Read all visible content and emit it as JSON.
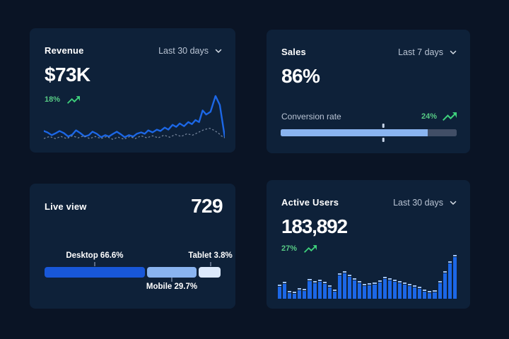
{
  "theme": {
    "page_bg": "#0a1425",
    "card_bg": "#0e2139",
    "muted_text": "#b9c4d4",
    "accent_blue": "#1c67e6",
    "light_blue": "#8ab4f0",
    "pale_blue": "#dce9fb",
    "desktop_blue": "#1857d8",
    "bar_cap": "#9fc2f4",
    "green": "#57ca85",
    "green_icon": "#3ed17c",
    "track_gray": "#414e66",
    "dashed_line": "#76859c"
  },
  "cards": {
    "revenue": {
      "title": "Revenue",
      "range_label": "Last 30 days",
      "value": "$73K",
      "delta": "18%",
      "chart_data": {
        "type": "line",
        "series": [
          {
            "name": "current",
            "style": "solid",
            "points": [
              [
                0,
                54
              ],
              [
                5,
                56
              ],
              [
                11,
                60
              ],
              [
                17,
                57
              ],
              [
                22,
                54
              ],
              [
                28,
                57
              ],
              [
                34,
                62
              ],
              [
                40,
                59
              ],
              [
                45,
                53
              ],
              [
                51,
                57
              ],
              [
                57,
                62
              ],
              [
                63,
                60
              ],
              [
                68,
                55
              ],
              [
                74,
                58
              ],
              [
                80,
                63
              ],
              [
                86,
                60
              ],
              [
                91,
                62
              ],
              [
                97,
                58
              ],
              [
                102,
                55
              ],
              [
                108,
                59
              ],
              [
                113,
                63
              ],
              [
                119,
                60
              ],
              [
                125,
                62
              ],
              [
                130,
                58
              ],
              [
                136,
                56
              ],
              [
                141,
                58
              ],
              [
                146,
                53
              ],
              [
                152,
                56
              ],
              [
                158,
                52
              ],
              [
                163,
                54
              ],
              [
                169,
                49
              ],
              [
                174,
                52
              ],
              [
                180,
                45
              ],
              [
                185,
                48
              ],
              [
                190,
                43
              ],
              [
                196,
                47
              ],
              [
                202,
                41
              ],
              [
                207,
                44
              ],
              [
                212,
                38
              ],
              [
                217,
                41
              ],
              [
                222,
                24
              ],
              [
                227,
                30
              ],
              [
                233,
                26
              ],
              [
                240,
                3
              ],
              [
                246,
                16
              ],
              [
                253,
                63
              ]
            ]
          },
          {
            "name": "previous",
            "style": "dotted",
            "points": [
              [
                0,
                65
              ],
              [
                8,
                62
              ],
              [
                16,
                65
              ],
              [
                24,
                62
              ],
              [
                32,
                65
              ],
              [
                40,
                61
              ],
              [
                48,
                64
              ],
              [
                56,
                61
              ],
              [
                64,
                65
              ],
              [
                72,
                62
              ],
              [
                80,
                65
              ],
              [
                88,
                62
              ],
              [
                96,
                66
              ],
              [
                104,
                63
              ],
              [
                112,
                66
              ],
              [
                120,
                62
              ],
              [
                128,
                65
              ],
              [
                136,
                61
              ],
              [
                144,
                64
              ],
              [
                152,
                61
              ],
              [
                160,
                64
              ],
              [
                168,
                60
              ],
              [
                176,
                63
              ],
              [
                184,
                59
              ],
              [
                192,
                62
              ],
              [
                200,
                58
              ],
              [
                208,
                60
              ],
              [
                216,
                56
              ],
              [
                224,
                52
              ],
              [
                232,
                50
              ],
              [
                238,
                53
              ],
              [
                244,
                57
              ],
              [
                248,
                61
              ],
              [
                253,
                64
              ]
            ]
          }
        ]
      }
    },
    "sales": {
      "title": "Sales",
      "range_label": "Last 7 days",
      "value": "86%",
      "metric_label": "Conversion rate",
      "delta": "24%",
      "chart_data": {
        "type": "progress",
        "fill_percent": 83.4,
        "marker_percent": 58.3
      }
    },
    "live_view": {
      "title": "Live view",
      "value": "729",
      "chart_data": {
        "type": "stacked-bar",
        "segments": [
          {
            "label": "Desktop 66.6%",
            "percent": 66.6,
            "width_percent": 57.0,
            "color_key": "desktop_blue",
            "label_side": "top",
            "center_percent": 28.5
          },
          {
            "label": "Mobile 29.7%",
            "percent": 29.7,
            "width_percent": 28.2,
            "color_key": "light_blue",
            "label_side": "bottom",
            "center_percent": 72.3
          },
          {
            "label": "Tablet 3.8%",
            "percent": 3.8,
            "width_percent": 12.6,
            "color_key": "pale_blue",
            "label_side": "top",
            "center_percent": 94.2
          }
        ]
      }
    },
    "active_users": {
      "title": "Active Users",
      "range_label": "Last 30 days",
      "value": "183,892",
      "delta": "27%",
      "chart_data": {
        "type": "bar",
        "max": 62,
        "values": [
          20,
          24,
          11,
          10,
          15,
          14,
          28,
          25,
          27,
          24,
          19,
          13,
          36,
          39,
          34,
          29,
          25,
          21,
          22,
          23,
          26,
          31,
          29,
          27,
          25,
          23,
          21,
          19,
          17,
          13,
          11,
          12,
          25,
          39,
          53,
          62
        ]
      }
    }
  }
}
